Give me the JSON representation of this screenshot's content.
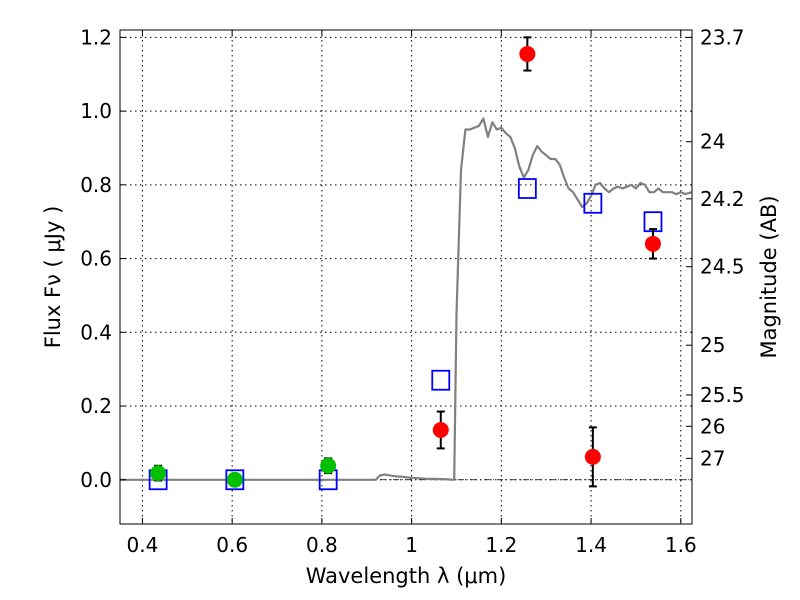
{
  "chart_data": {
    "type": "scatter",
    "xlabel": "Wavelength  λ (μm)",
    "ylabel": "Flux  Fν  ( μJy )",
    "ylabel_right": "Magnitude (AB)",
    "xlim": [
      0.35,
      1.625
    ],
    "ylim": [
      -0.12,
      1.22
    ],
    "grid": true,
    "x_ticks": [
      0.4,
      0.6,
      0.8,
      1.0,
      1.2,
      1.4,
      1.6
    ],
    "x_tick_labels": [
      "0.4",
      "0.6",
      "0.8",
      "1",
      "1.2",
      "1.4",
      "1.6"
    ],
    "y_ticks": [
      0.0,
      0.2,
      0.4,
      0.6,
      0.8,
      1.0,
      1.2
    ],
    "y_tick_labels": [
      "0.0",
      "0.2",
      "0.4",
      "0.6",
      "0.8",
      "1.0",
      "1.2"
    ],
    "right_ticks": [
      {
        "label": "23.7",
        "flux": 1.2
      },
      {
        "label": "24",
        "flux": 0.917
      },
      {
        "label": "24.2",
        "flux": 0.762
      },
      {
        "label": "24.5",
        "flux": 0.578
      },
      {
        "label": "25",
        "flux": 0.365
      },
      {
        "label": "25.5",
        "flux": 0.23
      },
      {
        "label": "26",
        "flux": 0.145
      },
      {
        "label": "27",
        "flux": 0.058
      }
    ],
    "series": [
      {
        "kind": "line",
        "color": "#808080",
        "x": [
          0.35,
          0.6,
          0.8,
          0.92,
          0.93,
          0.94,
          0.96,
          0.98,
          1.0,
          1.03,
          1.06,
          1.08,
          1.095,
          1.1,
          1.11,
          1.12,
          1.13,
          1.14,
          1.15,
          1.16,
          1.17,
          1.18,
          1.19,
          1.2,
          1.21,
          1.22,
          1.23,
          1.24,
          1.25,
          1.26,
          1.27,
          1.28,
          1.29,
          1.3,
          1.31,
          1.32,
          1.33,
          1.34,
          1.35,
          1.36,
          1.37,
          1.38,
          1.39,
          1.4,
          1.41,
          1.42,
          1.43,
          1.44,
          1.45,
          1.46,
          1.47,
          1.48,
          1.49,
          1.5,
          1.51,
          1.52,
          1.53,
          1.54,
          1.55,
          1.56,
          1.57,
          1.58,
          1.59,
          1.6,
          1.61,
          1.625
        ],
        "y": [
          0.0,
          0.0,
          0.0,
          0.0,
          0.012,
          0.014,
          0.01,
          0.008,
          0.005,
          0.003,
          0.002,
          0.001,
          0.0,
          0.45,
          0.84,
          0.95,
          0.95,
          0.955,
          0.96,
          0.98,
          0.93,
          0.97,
          0.95,
          0.955,
          0.94,
          0.93,
          0.9,
          0.85,
          0.82,
          0.84,
          0.88,
          0.905,
          0.89,
          0.88,
          0.87,
          0.87,
          0.855,
          0.82,
          0.79,
          0.78,
          0.76,
          0.74,
          0.75,
          0.77,
          0.8,
          0.805,
          0.79,
          0.78,
          0.79,
          0.795,
          0.79,
          0.795,
          0.8,
          0.79,
          0.805,
          0.8,
          0.78,
          0.78,
          0.79,
          0.78,
          0.78,
          0.78,
          0.775,
          0.78,
          0.775,
          0.78
        ]
      },
      {
        "kind": "markers",
        "marker": "square",
        "color": "#0000ff",
        "x": [
          0.435,
          0.606,
          0.814,
          1.065,
          1.258,
          1.404,
          1.538
        ],
        "y": [
          0.0,
          0.0,
          0.0,
          0.27,
          0.79,
          0.75,
          0.7
        ]
      },
      {
        "kind": "markers",
        "marker": "circle",
        "color": "#00c000",
        "x": [
          0.435,
          0.606,
          0.814
        ],
        "y": [
          0.018,
          0.0,
          0.038
        ],
        "yerr": [
          0.02,
          0.012,
          0.02
        ]
      },
      {
        "kind": "markers",
        "marker": "circle",
        "color": "#ff0000",
        "x": [
          1.065,
          1.258,
          1.404,
          1.538
        ],
        "y": [
          0.135,
          1.155,
          0.062,
          0.64
        ],
        "yerr": [
          0.05,
          0.045,
          0.08,
          0.04
        ]
      }
    ]
  }
}
